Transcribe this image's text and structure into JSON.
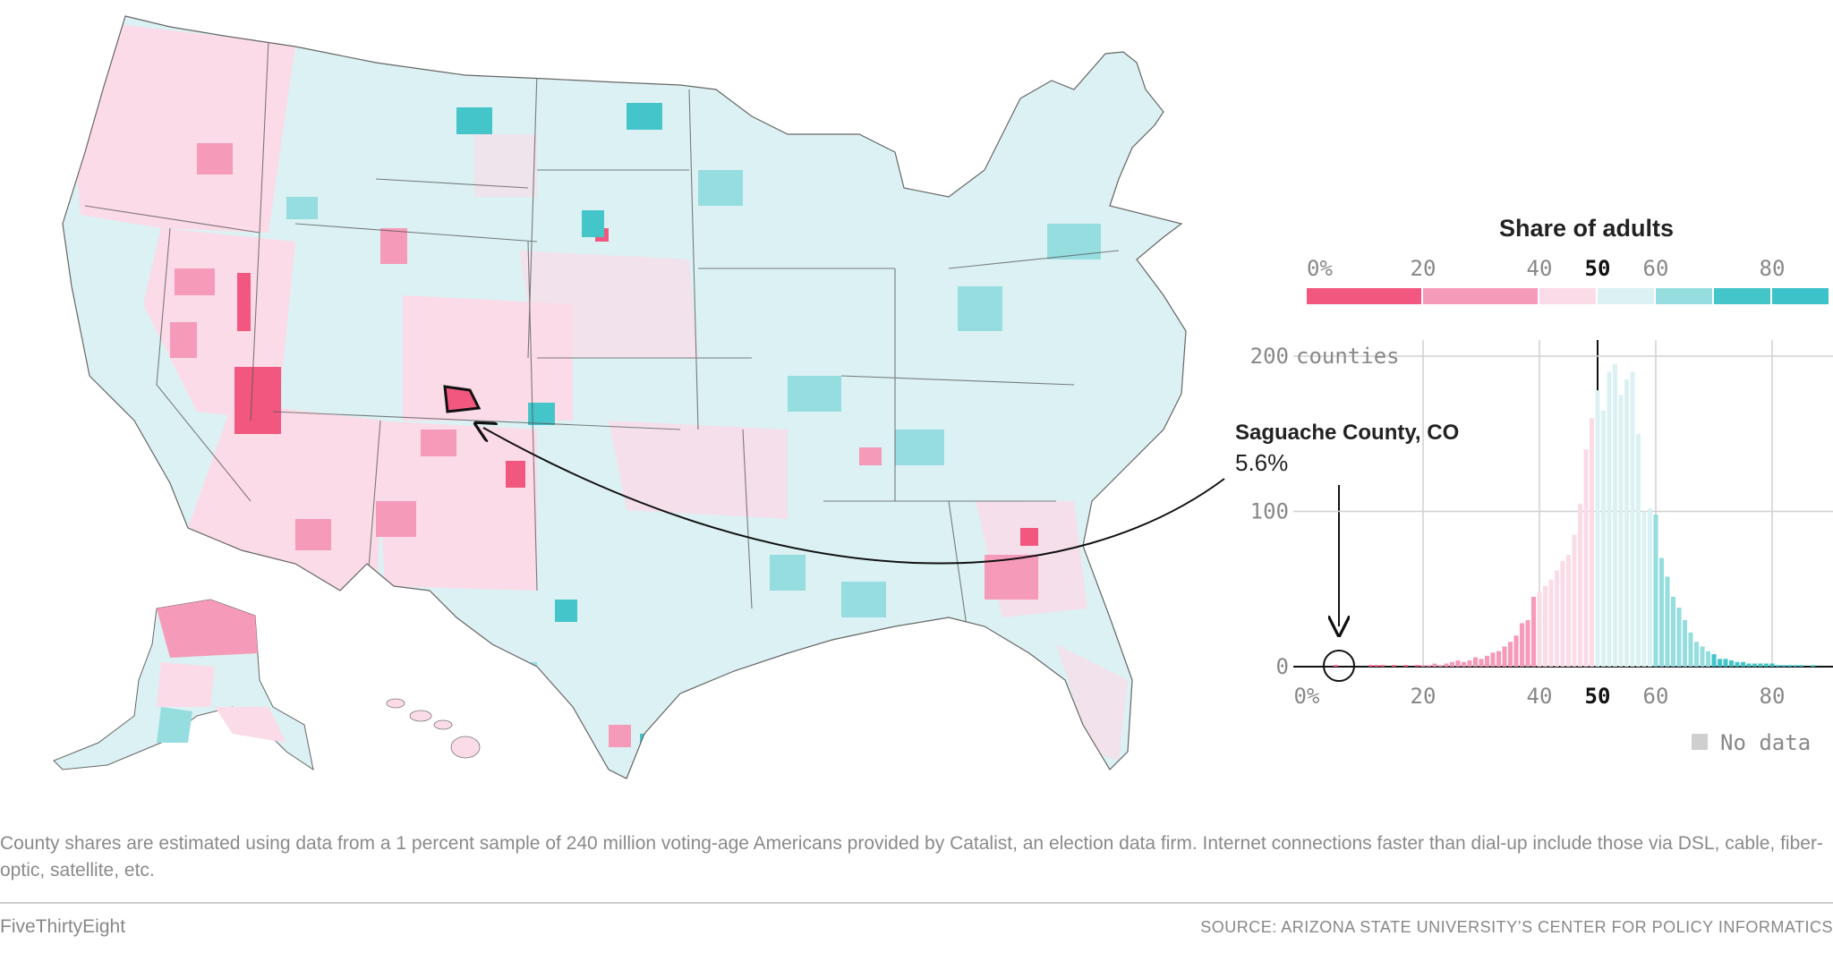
{
  "legend": {
    "title": "Share of adults",
    "tick_labels": [
      "0%",
      "20",
      "40",
      "50",
      "60",
      "80"
    ],
    "tick_values": [
      0,
      20,
      40,
      50,
      60,
      80
    ],
    "bins": [
      {
        "from": 0,
        "to": 20,
        "color": "#f2587f"
      },
      {
        "from": 20,
        "to": 40,
        "color": "#f59ab8"
      },
      {
        "from": 40,
        "to": 50,
        "color": "#fbdbe7"
      },
      {
        "from": 50,
        "to": 60,
        "color": "#dcf1f3"
      },
      {
        "from": 60,
        "to": 70,
        "color": "#96dde0"
      },
      {
        "from": 70,
        "to": 80,
        "color": "#44c5ca"
      },
      {
        "from": 80,
        "to": 100,
        "color": "#3cc3c9"
      }
    ]
  },
  "callout": {
    "name": "Saguache County, CO",
    "value": "5.6%"
  },
  "nodata_label": "No data",
  "colors": {
    "low": "#f2587f",
    "mid_low": "#f59ab8",
    "light_pink": "#fbdbe7",
    "light_teal": "#dcf1f3",
    "mid_teal": "#96dde0",
    "teal": "#44c5ca",
    "nodata": "#cfcfcf"
  },
  "chart_data": {
    "type": "bar",
    "title": "Share of adults",
    "xlabel": "",
    "ylabel": "",
    "xlim": [
      0,
      90
    ],
    "ylim": [
      0,
      200
    ],
    "y_ticks": [
      0,
      100,
      200
    ],
    "y_tick_labels": [
      "0",
      "100",
      "200 counties"
    ],
    "x_ticks": [
      0,
      20,
      40,
      50,
      60,
      80
    ],
    "x_tick_labels": [
      "0%",
      "20",
      "40",
      "50",
      "60",
      "80"
    ],
    "x": [
      5,
      6,
      8,
      10,
      11,
      12,
      13,
      14,
      15,
      16,
      17,
      18,
      19,
      20,
      21,
      22,
      23,
      24,
      25,
      26,
      27,
      28,
      29,
      30,
      31,
      32,
      33,
      34,
      35,
      36,
      37,
      38,
      39,
      40,
      41,
      42,
      43,
      44,
      45,
      46,
      47,
      48,
      49,
      50,
      51,
      52,
      53,
      54,
      55,
      56,
      57,
      58,
      59,
      60,
      61,
      62,
      63,
      64,
      65,
      66,
      67,
      68,
      69,
      70,
      71,
      72,
      73,
      74,
      75,
      76,
      77,
      78,
      79,
      80,
      81,
      82,
      83,
      84,
      85,
      86,
      87,
      88,
      89
    ],
    "values": [
      1,
      0,
      0,
      0,
      1,
      1,
      1,
      0,
      1,
      0,
      1,
      0,
      1,
      1,
      1,
      2,
      1,
      2,
      3,
      4,
      3,
      4,
      6,
      5,
      7,
      9,
      10,
      13,
      16,
      20,
      28,
      30,
      45,
      48,
      52,
      56,
      62,
      68,
      72,
      85,
      105,
      140,
      160,
      178,
      165,
      190,
      195,
      175,
      185,
      190,
      150,
      100,
      102,
      98,
      70,
      58,
      45,
      38,
      30,
      22,
      16,
      13,
      10,
      8,
      5,
      5,
      4,
      3,
      3,
      2,
      2,
      2,
      2,
      2,
      1,
      1,
      1,
      1,
      1,
      0,
      1,
      0,
      0
    ]
  },
  "footnote": "County shares are estimated using data from a 1 percent sample of 240 million voting-age Americans provided by Catalist, an election data firm. Internet connections faster than dial-up include those via DSL, cable, fiber-optic, satellite, etc.",
  "brand": "FiveThirtyEight",
  "source": "SOURCE: ARIZONA STATE UNIVERSITY’S CENTER FOR POLICY INFORMATICS"
}
